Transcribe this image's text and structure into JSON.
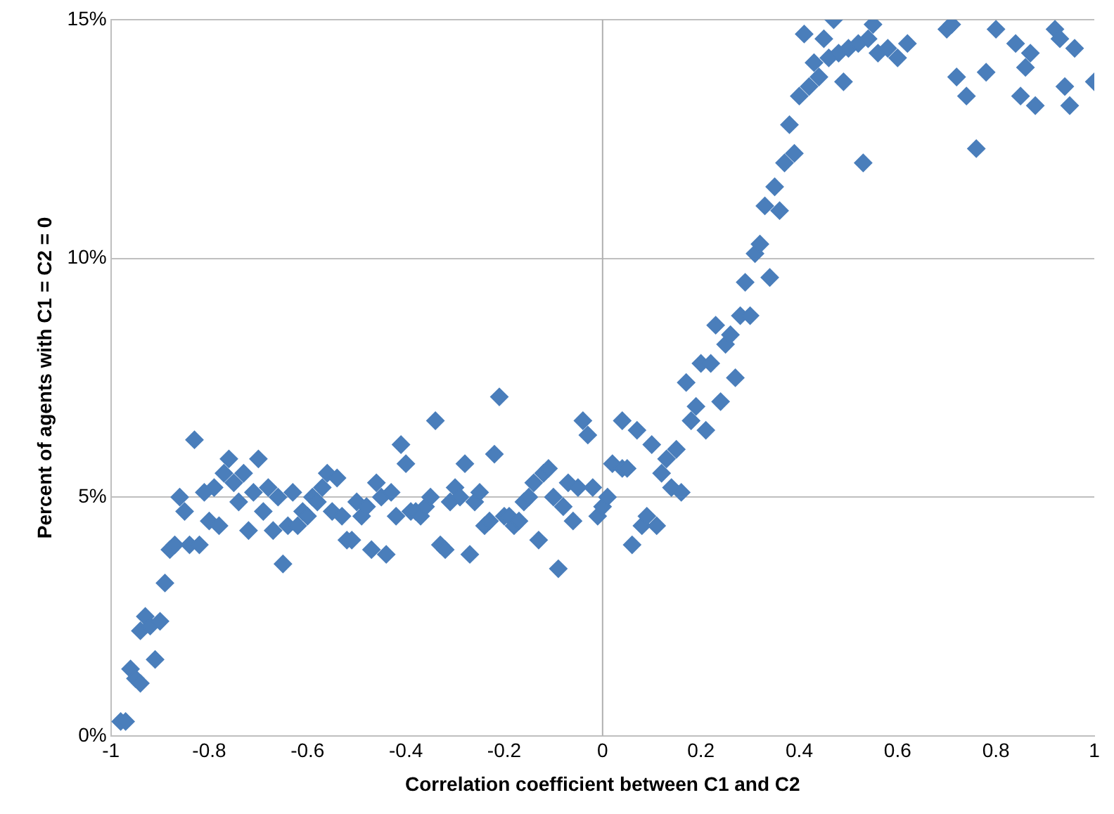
{
  "chart_data": {
    "type": "scatter",
    "xlabel": "Correlation coefficient between C1 and C2",
    "ylabel": "Percent of agents with C1 = C2 = 0",
    "xlim": [
      -1,
      1
    ],
    "xticks": [
      -1,
      -0.8,
      -0.6,
      -0.4,
      -0.2,
      0,
      0.2,
      0.4,
      0.6,
      0.8,
      1
    ],
    "ylim": [
      0,
      15
    ],
    "yticks": [
      {
        "value": 0,
        "label": "0%"
      },
      {
        "value": 5,
        "label": "5%"
      },
      {
        "value": 10,
        "label": "10%"
      },
      {
        "value": 15,
        "label": "15%"
      }
    ],
    "grid": "y",
    "marker": "diamond",
    "legend": false,
    "ref_lines": [
      {
        "axis": "x",
        "value": 0,
        "color": "#b0b0b0"
      }
    ],
    "series": [
      {
        "color": "#4a7ebb",
        "x": [
          -0.98,
          -0.97,
          -0.96,
          -0.95,
          -0.94,
          -0.94,
          -0.93,
          -0.92,
          -0.91,
          -0.9,
          -0.89,
          -0.88,
          -0.87,
          -0.86,
          -0.85,
          -0.84,
          -0.83,
          -0.82,
          -0.81,
          -0.8,
          -0.79,
          -0.78,
          -0.77,
          -0.76,
          -0.75,
          -0.74,
          -0.73,
          -0.72,
          -0.71,
          -0.7,
          -0.69,
          -0.68,
          -0.67,
          -0.66,
          -0.65,
          -0.64,
          -0.63,
          -0.62,
          -0.61,
          -0.6,
          -0.59,
          -0.58,
          -0.57,
          -0.56,
          -0.55,
          -0.54,
          -0.53,
          -0.52,
          -0.51,
          -0.5,
          -0.49,
          -0.48,
          -0.47,
          -0.46,
          -0.45,
          -0.44,
          -0.43,
          -0.42,
          -0.41,
          -0.4,
          -0.39,
          -0.38,
          -0.37,
          -0.36,
          -0.35,
          -0.34,
          -0.33,
          -0.32,
          -0.31,
          -0.3,
          -0.29,
          -0.28,
          -0.27,
          -0.26,
          -0.25,
          -0.24,
          -0.23,
          -0.22,
          -0.21,
          -0.2,
          -0.19,
          -0.18,
          -0.17,
          -0.16,
          -0.15,
          -0.14,
          -0.13,
          -0.12,
          -0.11,
          -0.1,
          -0.09,
          -0.08,
          -0.07,
          -0.06,
          -0.05,
          -0.04,
          -0.03,
          -0.02,
          -0.01,
          0,
          0.01,
          0.02,
          0.04,
          0.04,
          0.05,
          0.06,
          0.07,
          0.08,
          0.09,
          0.1,
          0.11,
          0.12,
          0.13,
          0.14,
          0.15,
          0.16,
          0.17,
          0.18,
          0.19,
          0.2,
          0.21,
          0.22,
          0.23,
          0.24,
          0.25,
          0.26,
          0.27,
          0.28,
          0.29,
          0.3,
          0.31,
          0.32,
          0.33,
          0.34,
          0.35,
          0.36,
          0.37,
          0.38,
          0.39,
          0.4,
          0.41,
          0.42,
          0.43,
          0.44,
          0.45,
          0.46,
          0.47,
          0.48,
          0.49,
          0.5,
          0.52,
          0.53,
          0.54,
          0.55,
          0.56,
          0.58,
          0.6,
          0.62,
          0.7,
          0.71,
          0.72,
          0.74,
          0.76,
          0.78,
          0.8,
          0.84,
          0.85,
          0.86,
          0.87,
          0.88,
          0.92,
          0.93,
          0.94,
          0.95,
          0.96,
          1
        ],
        "values": [
          0.3,
          0.3,
          1.4,
          1.2,
          1.1,
          2.2,
          2.5,
          2.3,
          1.6,
          2.4,
          3.2,
          3.9,
          4,
          5,
          4.7,
          4,
          6.2,
          4,
          5.1,
          4.5,
          5.2,
          4.4,
          5.5,
          5.8,
          5.3,
          4.9,
          5.5,
          4.3,
          5.1,
          5.8,
          4.7,
          5.2,
          4.3,
          5,
          3.6,
          4.4,
          5.1,
          4.4,
          4.7,
          4.6,
          5,
          4.9,
          5.2,
          5.5,
          4.7,
          5.4,
          4.6,
          4.1,
          4.1,
          4.9,
          4.6,
          4.8,
          3.9,
          5.3,
          5,
          3.8,
          5.1,
          4.6,
          6.1,
          5.7,
          4.7,
          4.7,
          4.6,
          4.8,
          5,
          6.6,
          4,
          3.9,
          4.9,
          5.2,
          5,
          5.7,
          3.8,
          4.9,
          5.1,
          4.4,
          4.5,
          5.9,
          7.1,
          4.6,
          4.6,
          4.4,
          4.5,
          4.9,
          5,
          5.3,
          4.1,
          5.5,
          5.6,
          5,
          3.5,
          4.8,
          5.3,
          4.5,
          5.2,
          6.6,
          6.3,
          5.2,
          4.6,
          4.8,
          5,
          5.7,
          6.6,
          5.6,
          5.6,
          4,
          6.4,
          4.4,
          4.6,
          6.1,
          4.4,
          5.5,
          5.8,
          5.2,
          6,
          5.1,
          7.4,
          6.6,
          6.9,
          7.8,
          6.4,
          7.8,
          8.6,
          7,
          8.2,
          8.4,
          7.5,
          8.8,
          9.5,
          8.8,
          10.1,
          10.3,
          11.1,
          9.6,
          11.5,
          11,
          12,
          12.8,
          12.2,
          13.4,
          14.7,
          13.6,
          14.1,
          13.8,
          14.6,
          14.2,
          15,
          14.3,
          13.7,
          14.4,
          14.5,
          12,
          14.6,
          14.9,
          14.3,
          14.4,
          14.2,
          14.5,
          14.8,
          14.9,
          13.8,
          13.4,
          12.3,
          13.9,
          14.8,
          14.5,
          13.4,
          14,
          14.3,
          13.2,
          14.8,
          14.6,
          13.6,
          13.2,
          14.4,
          13.7
        ]
      }
    ]
  }
}
